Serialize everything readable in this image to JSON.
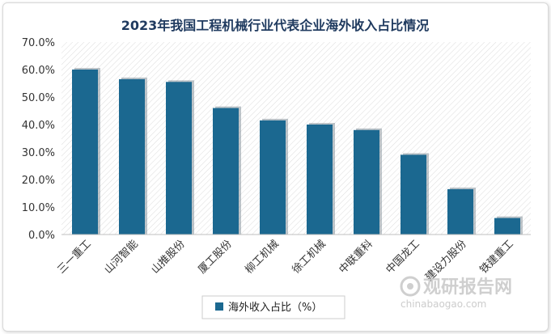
{
  "chart_data": {
    "type": "bar",
    "title": "2023年我国工程机械行业代表企业海外收入占比情况",
    "categories": [
      "三一重工",
      "山河智能",
      "山推股份",
      "厦工股份",
      "柳工机械",
      "徐工机械",
      "中联重科",
      "中国龙工",
      "建设力股份",
      "铁建重工"
    ],
    "series": [
      {
        "name": "海外收入占比（%）",
        "values": [
          60.0,
          56.5,
          55.5,
          46.0,
          41.5,
          40.0,
          38.0,
          29.0,
          16.5,
          6.0
        ]
      }
    ],
    "y_ticks": [
      "0.0%",
      "10.0%",
      "20.0%",
      "30.0%",
      "40.0%",
      "50.0%",
      "60.0%",
      "70.0%"
    ],
    "ylim": [
      0,
      70
    ],
    "grid": false,
    "legend_position": "bottom-center",
    "colors": {
      "bar": "#1b6890",
      "bar_shadow": "#6f7f8a",
      "hatch": "#d6d6d6",
      "title": "#1f3a5f"
    }
  },
  "watermark": {
    "brand": "观研报告网",
    "url": "chinabaogao.com"
  }
}
